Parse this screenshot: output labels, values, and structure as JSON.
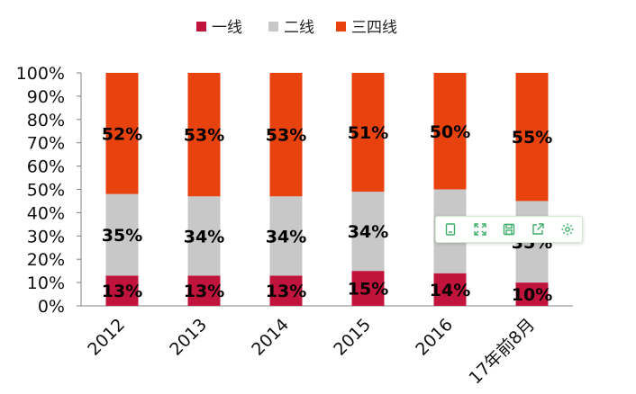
{
  "chart_data": {
    "type": "bar",
    "stacked": true,
    "percent": true,
    "categories": [
      "2012",
      "2013",
      "2014",
      "2015",
      "2016",
      "17年前8月"
    ],
    "series": [
      {
        "name": "一线",
        "color": "#c0143c",
        "values": [
          13,
          13,
          13,
          15,
          14,
          10
        ]
      },
      {
        "name": "二线",
        "color": "#c8c8c8",
        "values": [
          35,
          34,
          34,
          34,
          36,
          35
        ]
      },
      {
        "name": "三四线",
        "color": "#e8420f",
        "values": [
          52,
          53,
          53,
          51,
          50,
          55
        ]
      }
    ],
    "data_labels": [
      [
        "13%",
        "13%",
        "13%",
        "15%",
        "14%",
        "10%"
      ],
      [
        "35%",
        "34%",
        "34%",
        "34%",
        "",
        "35%"
      ],
      [
        "52%",
        "53%",
        "53%",
        "51%",
        "50%",
        "55%"
      ]
    ],
    "yticks": [
      "0%",
      "10%",
      "20%",
      "30%",
      "40%",
      "50%",
      "60%",
      "70%",
      "80%",
      "90%",
      "100%"
    ],
    "ylim": [
      0,
      100
    ],
    "legend_position": "top",
    "grid": false
  },
  "toolbar": {
    "buttons": [
      {
        "name": "copy-icon"
      },
      {
        "name": "expand-icon"
      },
      {
        "name": "save-icon"
      },
      {
        "name": "share-icon"
      },
      {
        "name": "settings-icon"
      }
    ],
    "accent": "#3fae6a"
  }
}
